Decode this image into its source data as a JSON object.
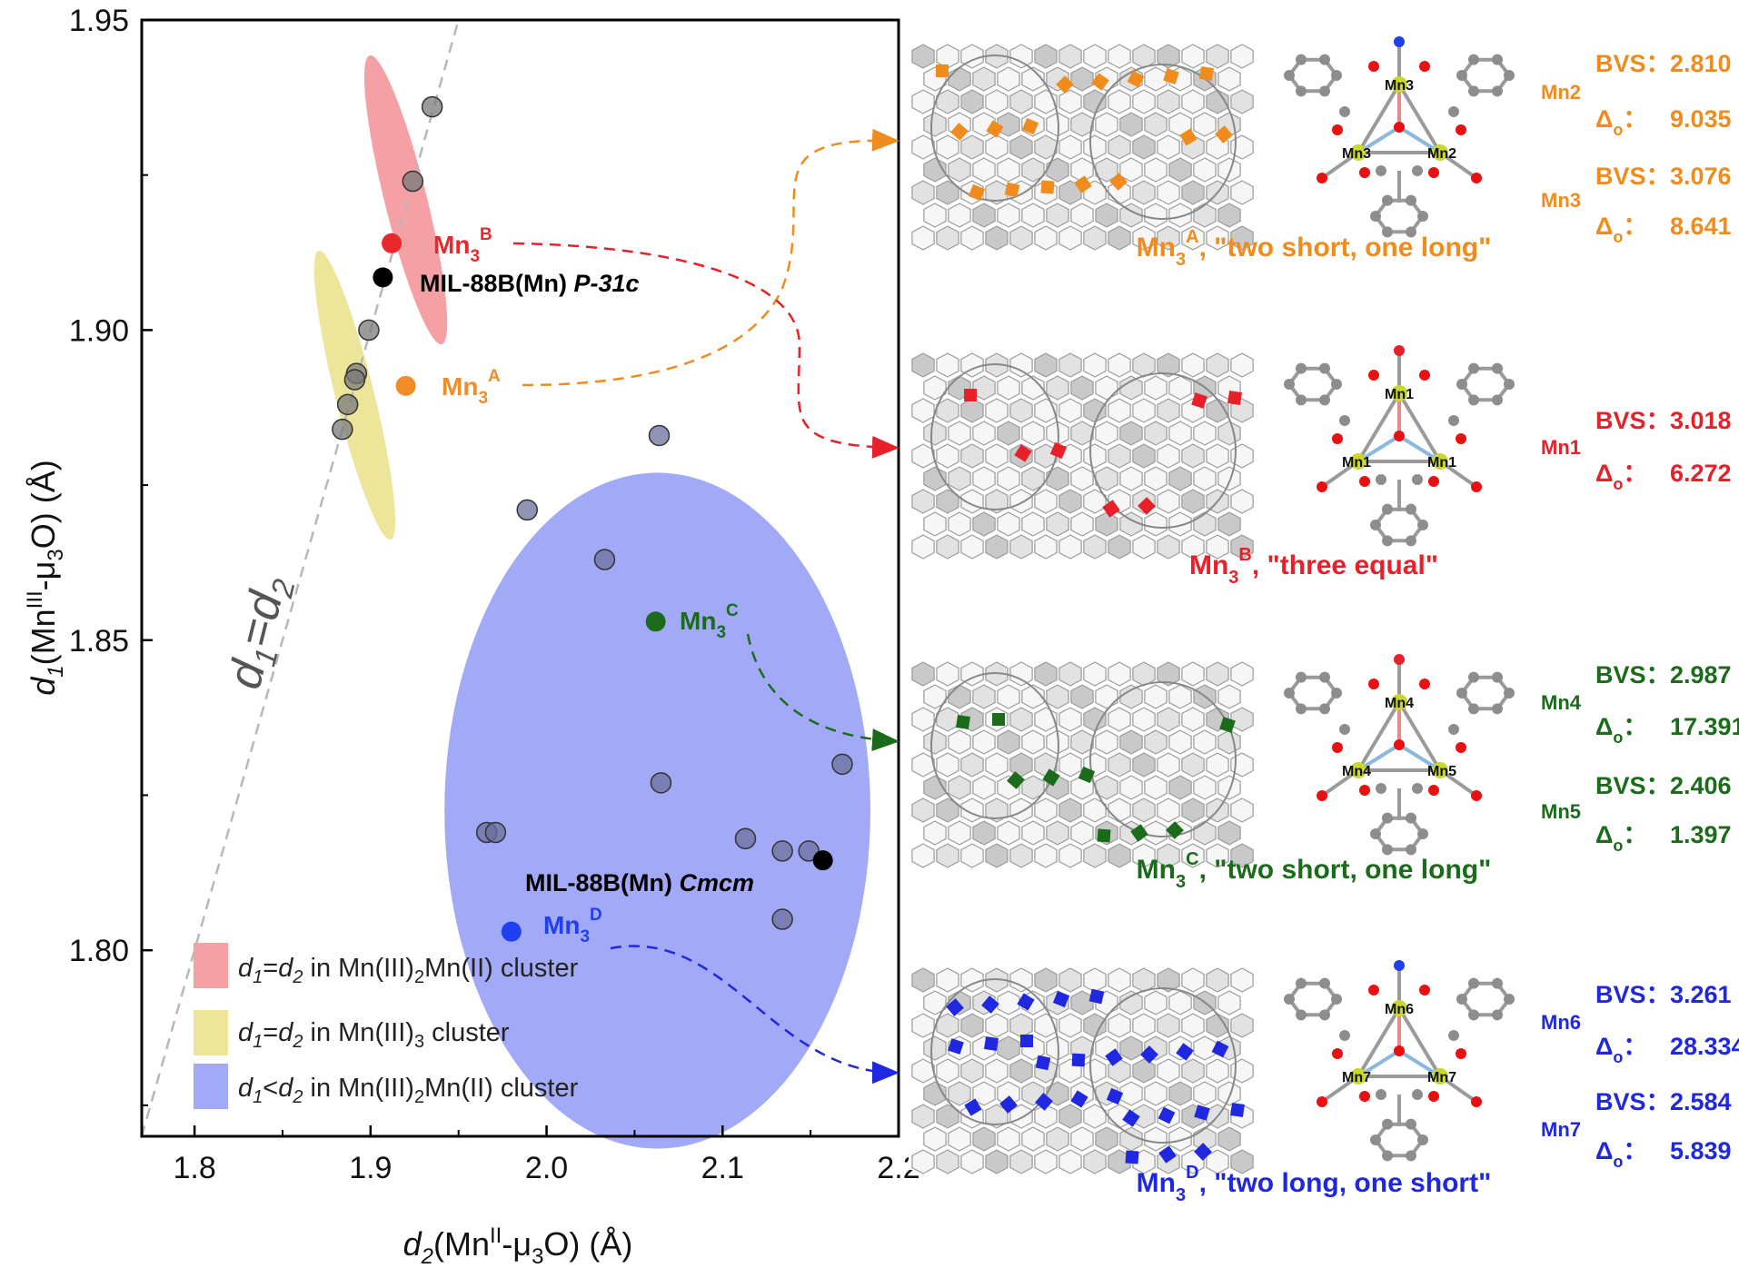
{
  "chart_data": {
    "type": "scatter",
    "title": "",
    "xlabel": {
      "d": "d",
      "sub": "2",
      "mid": "(Mn",
      "sup": "II",
      "mid2": "-μ",
      "sub2": "3",
      "end": "O) (Å)"
    },
    "ylabel": {
      "d": "d",
      "sub": "1",
      "mid": "(Mn",
      "sup": "III",
      "mid2": "-μ",
      "sub2": "3",
      "end": "O) (Å)"
    },
    "xlim": [
      1.77,
      2.2
    ],
    "ylim": [
      1.77,
      1.95
    ],
    "xticks": [
      "1.8",
      "1.9",
      "2.0",
      "2.1",
      "2.2"
    ],
    "yticks": [
      "1.80",
      "1.85",
      "1.90",
      "1.95"
    ],
    "xtick_values": [
      1.8,
      1.9,
      2.0,
      2.1,
      2.2
    ],
    "ytick_values": [
      1.8,
      1.85,
      1.9,
      1.95
    ],
    "diagonal_label": {
      "a": "d",
      "asub": "1",
      "eq": "=",
      "b": "d",
      "bsub": "2"
    },
    "regions": [
      {
        "name": "pink",
        "color": "#f4a0a4",
        "cx": 1.92,
        "cy": 1.921,
        "rx": 0.012,
        "ry": 0.024
      },
      {
        "name": "yellow",
        "color": "#ede69a",
        "cx": 1.891,
        "cy": 1.8895,
        "rx": 0.011,
        "ry": 0.024
      },
      {
        "name": "blue",
        "color": "#a2aaf8",
        "cx": 2.063,
        "cy": 1.8225,
        "rx": 0.121,
        "ry": 0.0545
      }
    ],
    "series": [
      {
        "color": "#7a7a7a",
        "opacity": 0.75,
        "x": [
          1.935,
          1.924,
          1.899,
          1.892,
          1.891,
          1.887,
          1.884
        ],
        "y": [
          1.936,
          1.924,
          1.9,
          1.893,
          1.892,
          1.888,
          1.884
        ]
      },
      {
        "color": "#6b6f9c",
        "opacity": 0.75,
        "x": [
          2.064,
          1.989,
          2.033,
          2.065,
          2.168,
          1.966,
          1.971,
          2.113,
          2.134,
          2.149,
          2.134
        ],
        "y": [
          1.883,
          1.871,
          1.863,
          1.827,
          1.83,
          1.819,
          1.819,
          1.818,
          1.816,
          1.816,
          1.805
        ]
      }
    ],
    "highlight_points": [
      {
        "x": 1.912,
        "y": 1.914,
        "color": "#e8282a"
      },
      {
        "x": 1.92,
        "y": 1.891,
        "color": "#f28c28"
      },
      {
        "x": 2.062,
        "y": 1.853,
        "color": "#1b6b1b"
      },
      {
        "x": 1.98,
        "y": 1.803,
        "color": "#1f3ff0"
      },
      {
        "x": 1.907,
        "y": 1.9085,
        "color": "#000000"
      },
      {
        "x": 2.157,
        "y": 1.8145,
        "color": "#000000"
      }
    ],
    "annotations": {
      "mn3b": {
        "base": "Mn",
        "sub": "3",
        "sup": "B"
      },
      "mn3a": {
        "base": "Mn",
        "sub": "3",
        "sup": "A"
      },
      "mn3c": {
        "base": "Mn",
        "sub": "3",
        "sup": "C"
      },
      "mn3d": {
        "base": "Mn",
        "sub": "3",
        "sup": "D"
      },
      "mil_p": {
        "main": "MIL-88B(Mn) ",
        "italic": "P-31c"
      },
      "mil_c": {
        "main": "MIL-88B(Mn) ",
        "italic": "Cmcm"
      }
    },
    "legend": {
      "position": "bottom-left",
      "entries": [
        {
          "color": "#f4a0a4",
          "d1": "d",
          "s1": "1",
          "op": "=",
          "d2": "d",
          "s2": "2",
          "text": " in Mn(III)",
          "sub": "2",
          "text2": "Mn(II) cluster"
        },
        {
          "color": "#ede69a",
          "d1": "d",
          "s1": "1",
          "op": "=",
          "d2": "d",
          "s2": "2",
          "text": " in Mn(III)",
          "sub": "3",
          "text2": " cluster"
        },
        {
          "color": "#a2aaf8",
          "d1": "d",
          "s1": "1",
          "op": "<",
          "d2": "d",
          "s2": "2",
          "text": " in Mn(III)",
          "sub": "2",
          "text2": "Mn(II) cluster"
        }
      ]
    }
  },
  "panels": [
    {
      "color": "#f08c1e",
      "caption": {
        "base": "Mn",
        "sub": "3",
        "sup": "A",
        "text": ", \"two short, one long\""
      },
      "atoms": [
        "Mn3",
        "Mn3",
        "Mn2"
      ],
      "top_atom_color": "#1f3ff0",
      "sites": [
        {
          "label": "Mn2",
          "bvs_label": "BVS：",
          "bvs": "2.810",
          "delta_label": "Δ",
          "delta_sub": "o",
          "delta_colon": "：",
          "delta": "9.035"
        },
        {
          "label": "Mn3",
          "bvs_label": "BVS：",
          "bvs": "3.076",
          "delta_label": "Δ",
          "delta_sub": "o",
          "delta_colon": "：",
          "delta": "8.641"
        }
      ]
    },
    {
      "color": "#e8202a",
      "caption": {
        "base": "Mn",
        "sub": "3",
        "sup": "B",
        "text": ", \"three equal\""
      },
      "atoms": [
        "Mn1",
        "Mn1",
        "Mn1"
      ],
      "top_atom_color": "#e8202a",
      "sites": [
        {
          "label": "Mn1",
          "bvs_label": "BVS：",
          "bvs": "3.018",
          "delta_label": "Δ",
          "delta_sub": "o",
          "delta_colon": "：",
          "delta": "6.272"
        }
      ]
    },
    {
      "color": "#1b6b1b",
      "caption": {
        "base": "Mn",
        "sub": "3",
        "sup": "C",
        "text": ", \"two short, one long\""
      },
      "atoms": [
        "Mn4",
        "Mn4",
        "Mn5"
      ],
      "top_atom_color": "#e8202a",
      "sites": [
        {
          "label": "Mn4",
          "bvs_label": "BVS：",
          "bvs": "2.987",
          "delta_label": "Δ",
          "delta_sub": "o",
          "delta_colon": "：",
          "delta": "17.391"
        },
        {
          "label": "Mn5",
          "bvs_label": "BVS：",
          "bvs": "2.406",
          "delta_label": "Δ",
          "delta_sub": "o",
          "delta_colon": "：",
          "delta": "1.397"
        }
      ]
    },
    {
      "color": "#1f28e0",
      "caption": {
        "base": "Mn",
        "sub": "3",
        "sup": "D",
        "text": ", \"two long, one short\""
      },
      "atoms": [
        "Mn6",
        "Mn7",
        "Mn7"
      ],
      "top_atom_color": "#1f3ff0",
      "sites": [
        {
          "label": "Mn6",
          "bvs_label": "BVS：",
          "bvs": "3.261",
          "delta_label": "Δ",
          "delta_sub": "o",
          "delta_colon": "：",
          "delta": "28.334"
        },
        {
          "label": "Mn7",
          "bvs_label": "BVS：",
          "bvs": "2.584",
          "delta_label": "Δ",
          "delta_sub": "o",
          "delta_colon": "：",
          "delta": "5.839"
        }
      ]
    }
  ]
}
